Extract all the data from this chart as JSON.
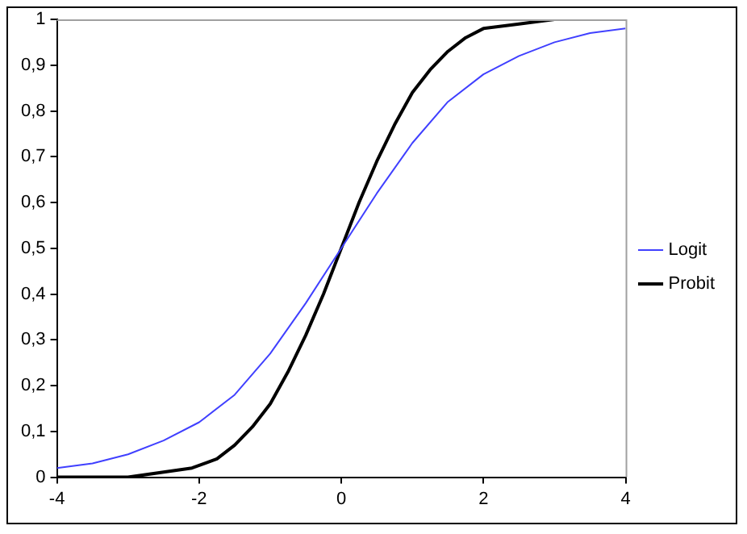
{
  "chart_data": {
    "type": "line",
    "x": [
      -4,
      -3.5,
      -3,
      -2.5,
      -2,
      -1.5,
      -1,
      -0.5,
      0,
      0.5,
      1,
      1.5,
      2,
      2.5,
      3,
      3.5,
      4
    ],
    "series": [
      {
        "name": "Logit",
        "color": "#4040ff",
        "values": [
          0.02,
          0.03,
          0.05,
          0.08,
          0.12,
          0.18,
          0.27,
          0.38,
          0.5,
          0.62,
          0.73,
          0.82,
          0.88,
          0.92,
          0.95,
          0.97,
          0.98
        ]
      },
      {
        "name": "Probit",
        "color": "#000000",
        "x": [
          -4,
          -3,
          -2.1,
          -1.75,
          -1.5,
          -1.25,
          -1,
          -0.75,
          -0.5,
          -0.25,
          0,
          0.25,
          0.5,
          0.75,
          1,
          1.25,
          1.5,
          1.75,
          2,
          2.5,
          3
        ],
        "values": [
          0,
          0,
          0.02,
          0.04,
          0.07,
          0.11,
          0.16,
          0.23,
          0.31,
          0.4,
          0.5,
          0.6,
          0.69,
          0.77,
          0.84,
          0.89,
          0.93,
          0.96,
          0.98,
          0.99,
          1
        ]
      }
    ],
    "xlim": [
      -4,
      4
    ],
    "xticks": [
      {
        "value": -4,
        "label": "-4"
      },
      {
        "value": -2,
        "label": "-2"
      },
      0,
      2,
      4
    ],
    "ylim": [
      0,
      1
    ],
    "yticks": [
      0,
      {
        "value": 0.1,
        "label": "0,1"
      },
      {
        "value": 0.2,
        "label": "0,2"
      },
      {
        "value": 0.3,
        "label": "0,3"
      },
      {
        "value": 0.4,
        "label": "0,4"
      },
      {
        "value": 0.5,
        "label": "0,5"
      },
      {
        "value": 0.6,
        "label": "0,6"
      },
      {
        "value": 0.7,
        "label": "0,7"
      },
      {
        "value": 0.8,
        "label": "0,8"
      },
      {
        "value": 0.9,
        "label": "0,9"
      },
      1
    ],
    "legend": "right",
    "marker": "none",
    "line_style": "solid"
  }
}
